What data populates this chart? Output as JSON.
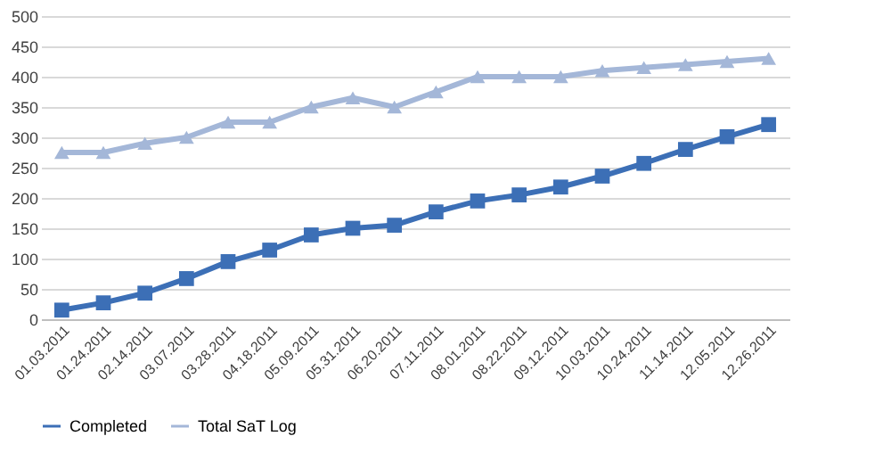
{
  "chart_data": {
    "type": "line",
    "categories": [
      "01.03.2011",
      "01.24.2011",
      "02.14.2011",
      "03.07.2011",
      "03.28.2011",
      "04.18.2011",
      "05.09.2011",
      "05.31.2011",
      "06.20.2011",
      "07.11.2011",
      "08.01.2011",
      "08.22.2011",
      "09.12.2011",
      "10.03.2011",
      "10.24.2011",
      "11.14.2011",
      "12.05.2011",
      "12.26.2011"
    ],
    "series": [
      {
        "name": "Completed",
        "color": "#3c6fb6",
        "marker": "square",
        "values": [
          15,
          27,
          43,
          67,
          95,
          114,
          139,
          150,
          155,
          177,
          195,
          205,
          218,
          236,
          257,
          280,
          301,
          321
        ]
      },
      {
        "name": "Total SaT Log",
        "color": "#a4b7d8",
        "marker": "triangle",
        "values": [
          275,
          275,
          290,
          300,
          325,
          325,
          350,
          365,
          350,
          375,
          400,
          400,
          400,
          410,
          415,
          420,
          425,
          430
        ]
      }
    ],
    "ylim": [
      0,
      500
    ],
    "yticks": [
      0,
      50,
      100,
      150,
      200,
      250,
      300,
      350,
      400,
      450,
      500
    ],
    "grid": "y",
    "legend": "bottom",
    "line_style": "solid"
  }
}
